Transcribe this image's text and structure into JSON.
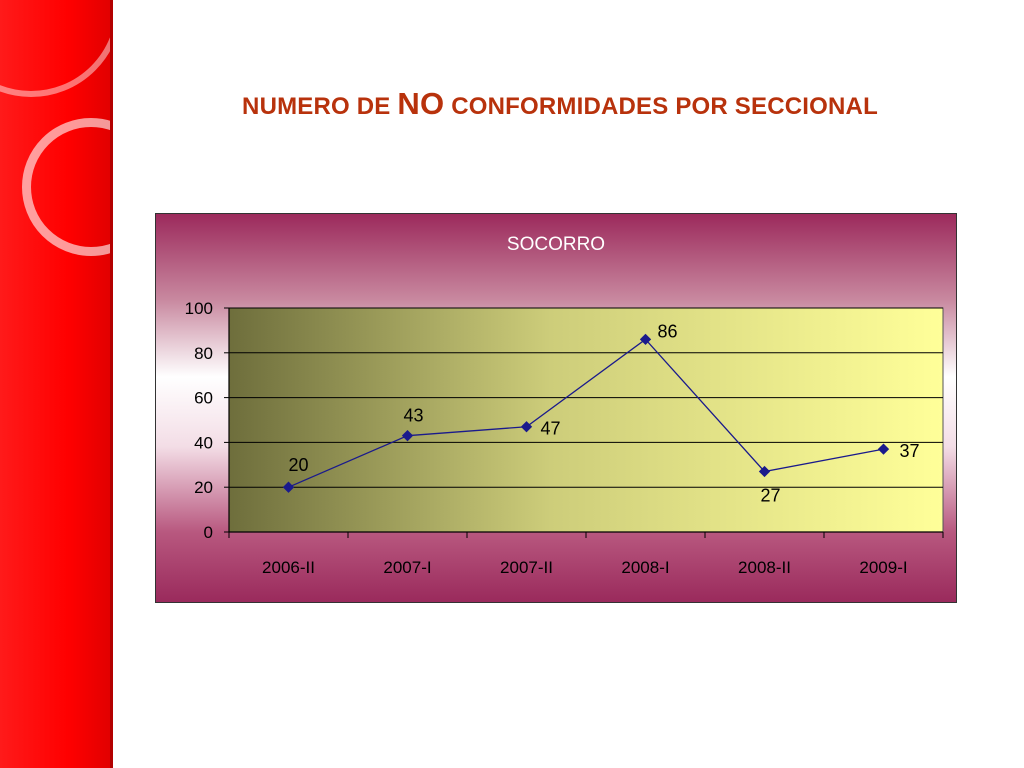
{
  "slide": {
    "title_prefix": "NUMERO DE",
    "title_emph": "NO",
    "title_suffix": "CONFORMIDADES POR SECCIONAL"
  },
  "colors": {
    "title": "#b8320c",
    "line": "#1a1a8c",
    "plot_left": "#6e6e3c",
    "plot_right": "#ffff99"
  },
  "chart_data": {
    "type": "line",
    "title": "SOCORRO",
    "xlabel": "",
    "ylabel": "",
    "categories": [
      "2006-II",
      "2007-I",
      "2007-II",
      "2008-I",
      "2008-II",
      "2009-I"
    ],
    "values": [
      20,
      43,
      47,
      86,
      27,
      37
    ],
    "yticks": [
      "0",
      "20",
      "40",
      "60",
      "80",
      "100"
    ],
    "ylim": [
      0,
      100
    ],
    "grid": true,
    "legend": "none"
  }
}
